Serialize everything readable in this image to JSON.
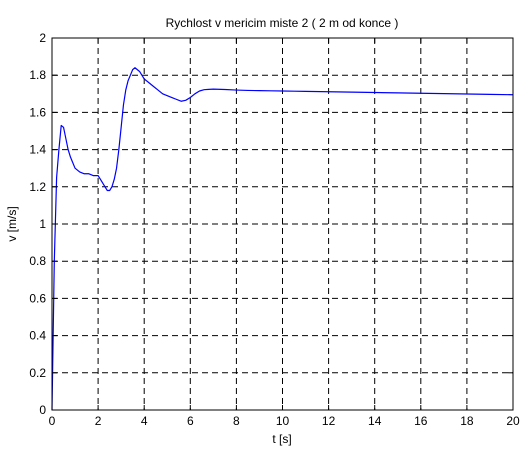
{
  "chart_data": {
    "type": "line",
    "title": "Rychlost v mericim miste 2 ( 2 m od konce )",
    "xlabel": "t [s]",
    "ylabel": "v [m/s]",
    "xlim": [
      0,
      20
    ],
    "ylim": [
      0,
      2
    ],
    "xticks": [
      0,
      2,
      4,
      6,
      8,
      10,
      12,
      14,
      16,
      18,
      20
    ],
    "yticks": [
      0,
      0.2,
      0.4,
      0.6,
      0.8,
      1,
      1.2,
      1.4,
      1.6,
      1.8,
      2
    ],
    "xtick_labels": [
      "0",
      "2",
      "4",
      "6",
      "8",
      "10",
      "12",
      "14",
      "16",
      "18",
      "20"
    ],
    "ytick_labels": [
      "0",
      "0.2",
      "0.4",
      "0.6",
      "0.8",
      "1",
      "1.2",
      "1.4",
      "1.6",
      "1.8",
      "2"
    ],
    "grid": true,
    "grid_style": "dashed",
    "series": [
      {
        "color": "#0000ff",
        "x": [
          0.0,
          0.1,
          0.2,
          0.3,
          0.4,
          0.5,
          0.6,
          0.7,
          0.8,
          0.9,
          1.0,
          1.2,
          1.4,
          1.6,
          1.8,
          2.0,
          2.1,
          2.2,
          2.3,
          2.4,
          2.5,
          2.6,
          2.7,
          2.8,
          2.9,
          3.0,
          3.1,
          3.2,
          3.3,
          3.4,
          3.5,
          3.6,
          3.7,
          3.8,
          3.9,
          4.0,
          4.2,
          4.4,
          4.6,
          4.8,
          5.0,
          5.2,
          5.4,
          5.6,
          5.8,
          6.0,
          6.2,
          6.4,
          6.6,
          6.8,
          7.0,
          7.5,
          8.0,
          8.5,
          9.0,
          9.5,
          10.0,
          10.5,
          11.0,
          12.0,
          13.0,
          14.0,
          15.0,
          16.0,
          17.0,
          18.0,
          19.0,
          20.0
        ],
        "y": [
          0.0,
          0.8,
          1.25,
          1.4,
          1.53,
          1.52,
          1.46,
          1.4,
          1.36,
          1.33,
          1.3,
          1.28,
          1.27,
          1.27,
          1.26,
          1.26,
          1.24,
          1.22,
          1.2,
          1.18,
          1.18,
          1.2,
          1.24,
          1.3,
          1.4,
          1.52,
          1.64,
          1.72,
          1.77,
          1.8,
          1.83,
          1.84,
          1.83,
          1.82,
          1.8,
          1.78,
          1.76,
          1.74,
          1.72,
          1.7,
          1.69,
          1.68,
          1.67,
          1.66,
          1.665,
          1.68,
          1.7,
          1.715,
          1.722,
          1.724,
          1.725,
          1.723,
          1.72,
          1.718,
          1.717,
          1.716,
          1.715,
          1.714,
          1.713,
          1.711,
          1.709,
          1.707,
          1.705,
          1.703,
          1.701,
          1.699,
          1.697,
          1.695
        ]
      }
    ]
  }
}
